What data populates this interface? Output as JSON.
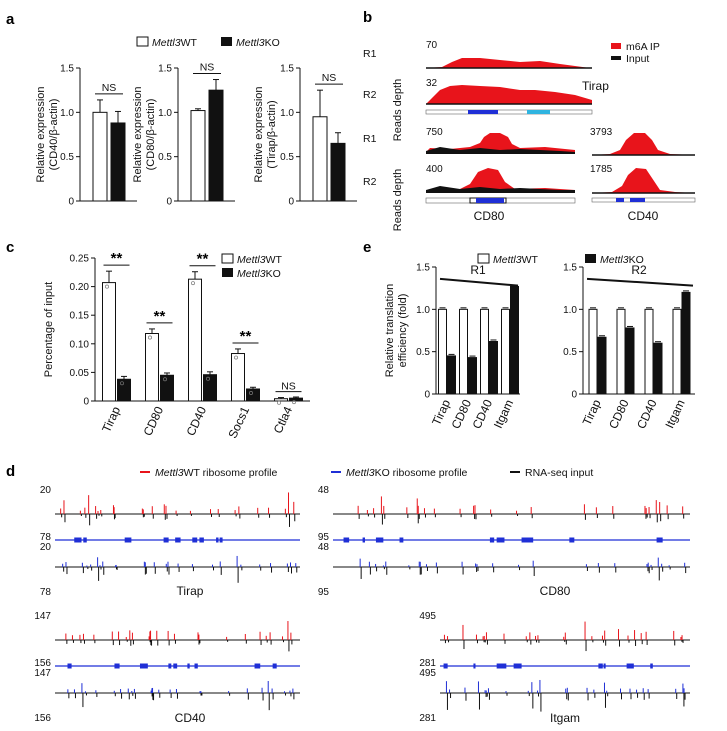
{
  "panels": {
    "a": "a",
    "b": "b",
    "c": "c",
    "d": "d",
    "e": "e"
  },
  "legend_wt": "Mettl3WT",
  "legend_ko": "Mettl3KO",
  "legend_gene_italic": "Mettl3",
  "legend_wt_suffix": "WT",
  "legend_ko_suffix": "KO",
  "ns": "NS",
  "sig": "**",
  "chart_data": [
    {
      "id": "a1",
      "type": "bar",
      "categories": [
        "WT",
        "KO"
      ],
      "values": [
        1.0,
        0.88
      ],
      "errors": [
        0.14,
        0.13
      ],
      "ylabel": [
        "Relative expression",
        "(CD40/β-actin)"
      ],
      "ylim": [
        0,
        1.5
      ],
      "yticks": [
        "0",
        "0.5",
        "1.0",
        "1.5"
      ],
      "annotation": "NS"
    },
    {
      "id": "a2",
      "type": "bar",
      "categories": [
        "WT",
        "KO"
      ],
      "values": [
        1.02,
        1.25
      ],
      "errors": [
        0.02,
        0.12
      ],
      "ylabel": [
        "Relative expression",
        "(CD80/β-actin)"
      ],
      "ylim": [
        0,
        1.5
      ],
      "yticks": [
        "0",
        "0.5",
        "1.0",
        "1.5"
      ],
      "annotation": "NS"
    },
    {
      "id": "a3",
      "type": "bar",
      "categories": [
        "WT",
        "KO"
      ],
      "values": [
        0.95,
        0.65
      ],
      "errors": [
        0.3,
        0.12
      ],
      "ylabel": [
        "Relative expression",
        "(Tirap/β-actin)"
      ],
      "ylim": [
        0,
        1.5
      ],
      "yticks": [
        "0",
        "0.5",
        "1.0",
        "1.5"
      ],
      "annotation": "NS"
    },
    {
      "id": "c",
      "type": "bar",
      "title": "",
      "ylabel": "Percentage of input",
      "ylim": [
        0,
        0.25
      ],
      "yticks": [
        "0",
        "0.05",
        "0.10",
        "0.15",
        "0.20",
        "0.25"
      ],
      "categories": [
        "Tirap",
        "CD80",
        "CD40",
        "Socs1",
        "Ctla4"
      ],
      "series": [
        {
          "name": "Mettl3WT",
          "values": [
            0.207,
            0.118,
            0.213,
            0.083,
            0.004
          ],
          "errors": [
            0.02,
            0.008,
            0.013,
            0.008,
            0.002
          ]
        },
        {
          "name": "Mettl3KO",
          "values": [
            0.038,
            0.045,
            0.046,
            0.021,
            0.005
          ],
          "errors": [
            0.005,
            0.004,
            0.005,
            0.003,
            0.002
          ]
        }
      ],
      "annotations": [
        "**",
        "**",
        "**",
        "**",
        "NS"
      ]
    },
    {
      "id": "e1",
      "type": "bar",
      "ylabel": [
        "Relative translation",
        "efficiency (fold)"
      ],
      "ylim": [
        0,
        1.5
      ],
      "yticks": [
        "0",
        "0.5",
        "1.0",
        "1.5"
      ],
      "categories": [
        "Tirap",
        "CD80",
        "CD40",
        "Itgam"
      ],
      "replicate": "R1",
      "series": [
        {
          "name": "Mettl3WT",
          "values": [
            1.0,
            1.0,
            1.0,
            1.0
          ]
        },
        {
          "name": "Mettl3KO",
          "values": [
            0.45,
            0.43,
            0.62,
            1.27
          ]
        }
      ]
    },
    {
      "id": "e2",
      "type": "bar",
      "ylim": [
        0,
        1.5
      ],
      "yticks": [
        "0",
        "0.5",
        "1.0",
        "1.5"
      ],
      "categories": [
        "Tirap",
        "CD80",
        "CD40",
        "Itgam"
      ],
      "replicate": "R2",
      "series": [
        {
          "name": "Mettl3WT",
          "values": [
            1.0,
            1.0,
            1.0,
            1.0
          ]
        },
        {
          "name": "Mettl3KO",
          "values": [
            0.67,
            0.78,
            0.6,
            1.2
          ]
        }
      ]
    }
  ],
  "b": {
    "legend_ip": "m6A IP",
    "legend_input": "Input",
    "ylabel": "Reads depth",
    "tirap": {
      "name": "Tirap",
      "r1_max": "70",
      "r2_max": "32"
    },
    "cd80": {
      "name": "CD80",
      "r1_max": "750",
      "r2_max": "400"
    },
    "cd40": {
      "name": "CD40",
      "r1_max": "3793",
      "r2_max": "1785"
    },
    "r1": "R1",
    "r2": "R2"
  },
  "d": {
    "legend_wt": "Mettl3WT ribosome profile",
    "legend_ko": "Mettl3KO ribosome profile",
    "legend_rna": "RNA-seq input",
    "genes": [
      {
        "name": "Tirap",
        "top": "20",
        "mid1": "78",
        "mid2": "20",
        "bottom": "78"
      },
      {
        "name": "CD80",
        "top": "48",
        "mid1": "95",
        "mid2": "48",
        "bottom": "95"
      },
      {
        "name": "CD40",
        "top": "147",
        "mid1": "156",
        "mid2": "147",
        "bottom": "156"
      },
      {
        "name": "Itgam",
        "top": "495",
        "mid1": "281",
        "mid2": "495",
        "bottom": "281"
      }
    ]
  },
  "colors": {
    "red": "#e8141b",
    "blue": "#1f2fd6",
    "cyan": "#2fb4e0",
    "black": "#111111"
  }
}
